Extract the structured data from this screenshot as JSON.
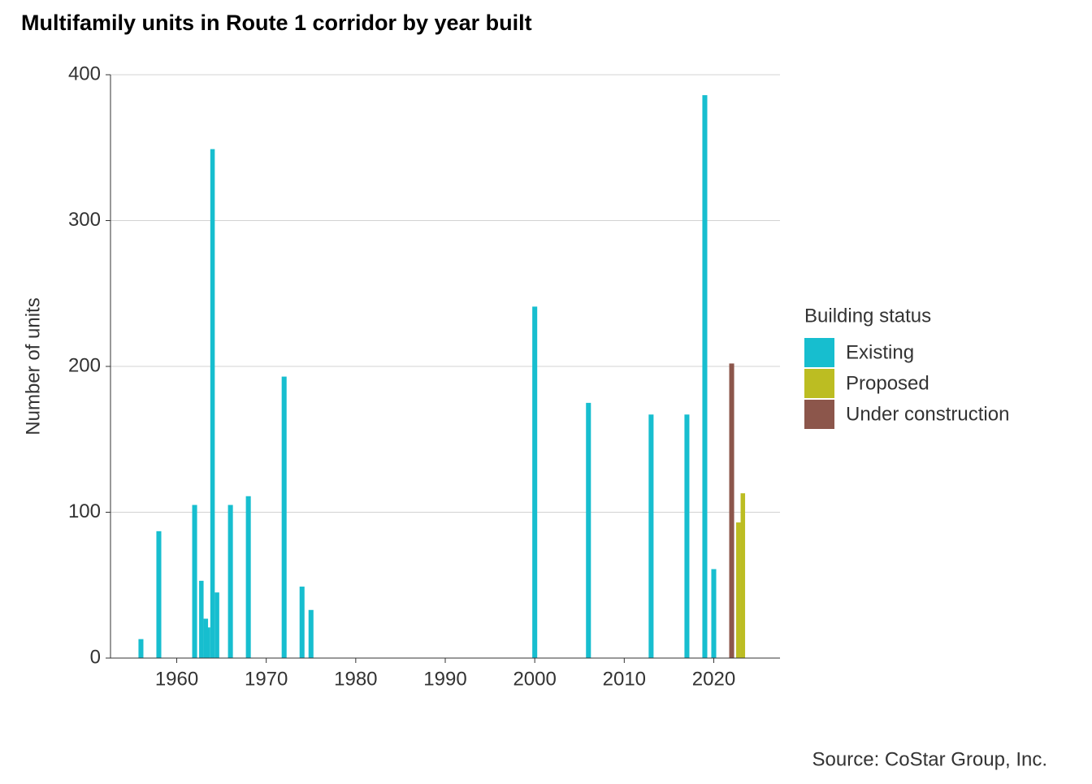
{
  "chart_data": {
    "type": "bar",
    "title": "Multifamily units in Route 1 corridor by year built",
    "y_label": "Number of units",
    "legend_title": "Building status",
    "source": "Source: CoStar Group, Inc.",
    "xlim": [
      1952.6,
      2027.4
    ],
    "xticks": [
      1960,
      1970,
      1980,
      1990,
      2000,
      2010,
      2020
    ],
    "ylim": [
      0,
      400
    ],
    "yticks": [
      0,
      100,
      200,
      300,
      400
    ],
    "grid": true,
    "legend": "right",
    "series": [
      {
        "name": "Existing",
        "color": "#17becf",
        "x": [
          1956,
          1958,
          1962,
          1963,
          1963,
          1964,
          1964,
          1964,
          1966,
          1968,
          1972,
          1974,
          1975,
          2000,
          2006,
          2013,
          2017,
          2019,
          2020
        ],
        "values": [
          13,
          87,
          105,
          53,
          27,
          21,
          349,
          45,
          105,
          111,
          193,
          49,
          33,
          241,
          175,
          167,
          167,
          386,
          61
        ]
      },
      {
        "name": "Proposed",
        "color": "#bcbd22",
        "x": [
          2023,
          2023
        ],
        "values": [
          93,
          113
        ]
      },
      {
        "name": "Under construction",
        "color": "#8c564b",
        "x": [
          2022
        ],
        "values": [
          202
        ]
      }
    ]
  }
}
